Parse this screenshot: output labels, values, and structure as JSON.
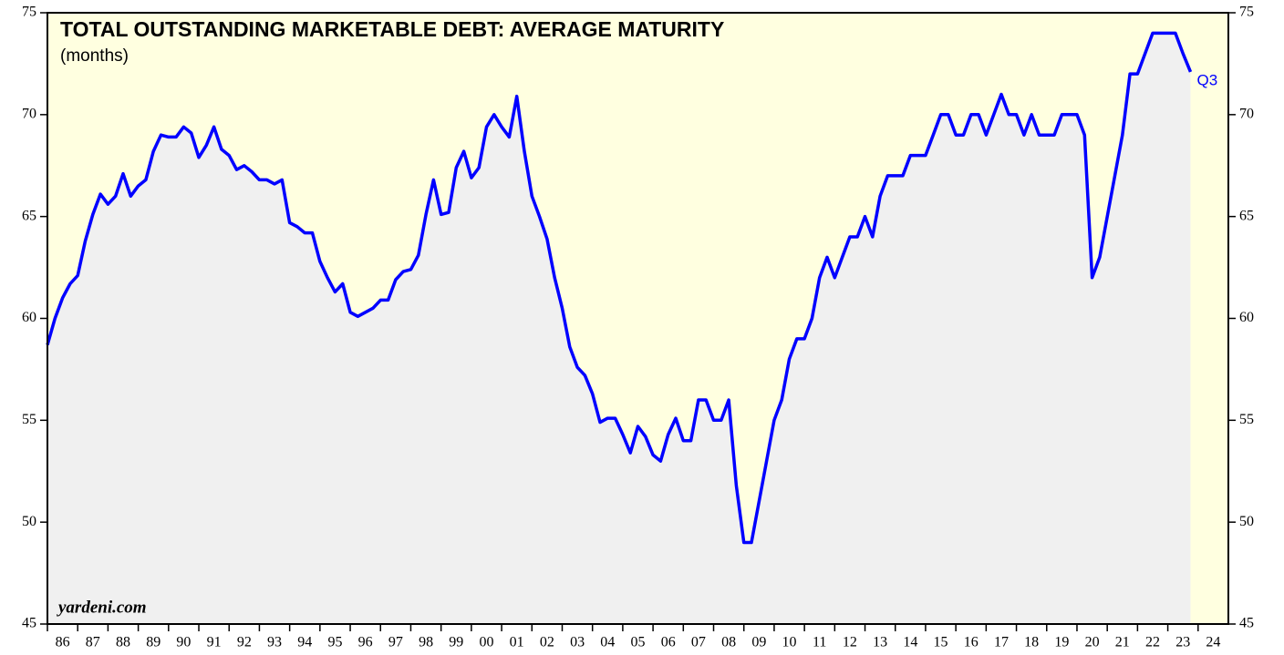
{
  "chart_data": {
    "type": "line",
    "title": "TOTAL OUTSTANDING MARKETABLE DEBT: AVERAGE MATURITY",
    "subtitle": "(months)",
    "annotation": "Q3",
    "source": "yardeni.com",
    "color": "#0000ff",
    "area_color": "#f0f0f0",
    "background": "#ffffe0",
    "x": [
      1986,
      1986.25,
      1986.5,
      1986.75,
      1987,
      1987.25,
      1987.5,
      1987.75,
      1988,
      1988.25,
      1988.5,
      1988.75,
      1989,
      1989.25,
      1989.5,
      1989.75,
      1990,
      1990.25,
      1990.5,
      1990.75,
      1991,
      1991.25,
      1991.5,
      1991.75,
      1992,
      1992.25,
      1992.5,
      1992.75,
      1993,
      1993.25,
      1993.5,
      1993.75,
      1994,
      1994.25,
      1994.5,
      1994.75,
      1995,
      1995.25,
      1995.5,
      1995.75,
      1996,
      1996.25,
      1996.5,
      1996.75,
      1997,
      1997.25,
      1997.5,
      1997.75,
      1998,
      1998.25,
      1998.5,
      1998.75,
      1999,
      1999.25,
      1999.5,
      1999.75,
      2000,
      2000.25,
      2000.5,
      2000.75,
      2001,
      2001.25,
      2001.5,
      2001.75,
      2002,
      2002.25,
      2002.5,
      2002.75,
      2003,
      2003.25,
      2003.5,
      2003.75,
      2004,
      2004.25,
      2004.5,
      2004.75,
      2005,
      2005.25,
      2005.5,
      2005.75,
      2006,
      2006.25,
      2006.5,
      2006.75,
      2007,
      2007.25,
      2007.5,
      2007.75,
      2008,
      2008.25,
      2008.5,
      2008.75,
      2009,
      2009.25,
      2009.5,
      2009.75,
      2010,
      2010.25,
      2010.5,
      2010.75,
      2011,
      2011.25,
      2011.5,
      2011.75,
      2012,
      2012.25,
      2012.5,
      2012.75,
      2013,
      2013.25,
      2013.5,
      2013.75,
      2014,
      2014.25,
      2014.5,
      2014.75,
      2015,
      2015.25,
      2015.5,
      2015.75,
      2016,
      2016.25,
      2016.5,
      2016.75,
      2017,
      2017.25,
      2017.5,
      2017.75,
      2018,
      2018.25,
      2018.5,
      2018.75,
      2019,
      2019.25,
      2019.5,
      2019.75,
      2020,
      2020.25,
      2020.5,
      2020.75,
      2021,
      2021.25,
      2021.5,
      2021.75,
      2022,
      2022.25,
      2022.5,
      2022.75,
      2023,
      2023.25,
      2023.5,
      2023.75
    ],
    "values": [
      58.7,
      60.0,
      61.0,
      61.7,
      62.1,
      63.8,
      65.1,
      66.1,
      65.6,
      66.0,
      67.1,
      66.0,
      66.5,
      66.8,
      68.2,
      69.0,
      68.9,
      68.9,
      69.4,
      69.1,
      67.9,
      68.5,
      69.4,
      68.3,
      68.0,
      67.3,
      67.5,
      67.2,
      66.8,
      66.8,
      66.6,
      66.8,
      64.7,
      64.5,
      64.2,
      64.2,
      62.8,
      62.0,
      61.3,
      61.7,
      60.3,
      60.1,
      60.3,
      60.5,
      60.9,
      60.9,
      61.9,
      62.3,
      62.4,
      63.1,
      65.1,
      66.8,
      65.1,
      65.2,
      67.4,
      68.2,
      66.9,
      67.4,
      69.4,
      70.0,
      69.4,
      68.9,
      70.9,
      68.2,
      66.0,
      65.0,
      63.9,
      62.0,
      60.5,
      58.6,
      57.6,
      57.2,
      56.3,
      54.9,
      55.1,
      55.1,
      54.3,
      53.4,
      54.7,
      54.2,
      53.3,
      53.0,
      54.3,
      55.1,
      54.0,
      54.0,
      56.0,
      56.0,
      55.0,
      55.0,
      56.0,
      51.8,
      49.0,
      49.0,
      51.0,
      53.0,
      55.0,
      56.0,
      58.0,
      59.0,
      59.0,
      60.0,
      62.0,
      63.0,
      62.0,
      63.0,
      64.0,
      64.0,
      65.0,
      64.0,
      66.0,
      67.0,
      67.0,
      67.0,
      68.0,
      68.0,
      68.0,
      69.0,
      70.0,
      70.0,
      69.0,
      69.0,
      70.0,
      70.0,
      69.0,
      70.0,
      71.0,
      70.0,
      70.0,
      69.0,
      70.0,
      69.0,
      69.0,
      69.0,
      70.0,
      70.0,
      70.0,
      69.0,
      62.0,
      63.0,
      65.0,
      67.0,
      69.0,
      72.0,
      72.0,
      73.0,
      74.0,
      74.0,
      74.0,
      74.0,
      73.0,
      72.1
    ],
    "xlim": [
      1986,
      2025
    ],
    "xticks": [
      {
        "value": 1986,
        "label": "86"
      },
      {
        "value": 1987,
        "label": "87"
      },
      {
        "value": 1988,
        "label": "88"
      },
      {
        "value": 1989,
        "label": "89"
      },
      {
        "value": 1990,
        "label": "90"
      },
      {
        "value": 1991,
        "label": "91"
      },
      {
        "value": 1992,
        "label": "92"
      },
      {
        "value": 1993,
        "label": "93"
      },
      {
        "value": 1994,
        "label": "94"
      },
      {
        "value": 1995,
        "label": "95"
      },
      {
        "value": 1996,
        "label": "96"
      },
      {
        "value": 1997,
        "label": "97"
      },
      {
        "value": 1998,
        "label": "98"
      },
      {
        "value": 1999,
        "label": "99"
      },
      {
        "value": 2000,
        "label": "00"
      },
      {
        "value": 2001,
        "label": "01"
      },
      {
        "value": 2002,
        "label": "02"
      },
      {
        "value": 2003,
        "label": "03"
      },
      {
        "value": 2004,
        "label": "04"
      },
      {
        "value": 2005,
        "label": "05"
      },
      {
        "value": 2006,
        "label": "06"
      },
      {
        "value": 2007,
        "label": "07"
      },
      {
        "value": 2008,
        "label": "08"
      },
      {
        "value": 2009,
        "label": "09"
      },
      {
        "value": 2010,
        "label": "10"
      },
      {
        "value": 2011,
        "label": "11"
      },
      {
        "value": 2012,
        "label": "12"
      },
      {
        "value": 2013,
        "label": "13"
      },
      {
        "value": 2014,
        "label": "14"
      },
      {
        "value": 2015,
        "label": "15"
      },
      {
        "value": 2016,
        "label": "16"
      },
      {
        "value": 2017,
        "label": "17"
      },
      {
        "value": 2018,
        "label": "18"
      },
      {
        "value": 2019,
        "label": "19"
      },
      {
        "value": 2020,
        "label": "20"
      },
      {
        "value": 2021,
        "label": "21"
      },
      {
        "value": 2022,
        "label": "22"
      },
      {
        "value": 2023,
        "label": "23"
      },
      {
        "value": 2024,
        "label": "24"
      }
    ],
    "ylim": [
      45,
      75
    ],
    "yticks": [
      45,
      50,
      55,
      60,
      65,
      70,
      75
    ]
  }
}
